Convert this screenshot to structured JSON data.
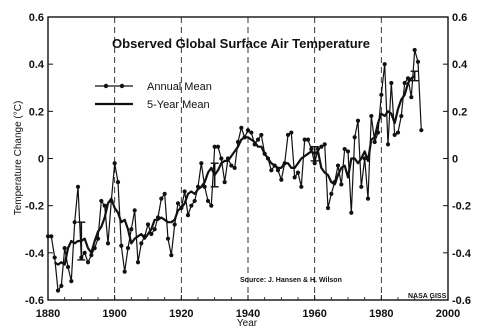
{
  "chart_data": {
    "type": "line",
    "title": "Observed Global Surface Air Temperature",
    "xlabel": "Year",
    "ylabel": "Temperature Change (°C)",
    "xlim": [
      1880,
      2000
    ],
    "ylim": [
      -0.6,
      0.6
    ],
    "x_ticks": [
      1880,
      1900,
      1920,
      1940,
      1960,
      1980,
      2000
    ],
    "y_ticks": [
      -0.6,
      -0.4,
      -0.2,
      0,
      0.2,
      0.4,
      0.6
    ],
    "x_tick_labels": [
      "1880",
      "1900",
      "1920",
      "1940",
      "1960",
      "1980",
      "2000"
    ],
    "y_tick_labels": [
      "-0.6",
      "-0.4",
      "-0.2",
      "0",
      "0.2",
      "0.4",
      "0.6"
    ],
    "grid": "vertical dashed lines at x ticks",
    "legend_position": "top-left",
    "series": [
      {
        "name": "Annual Mean",
        "marker": "dot",
        "x": [
          1880,
          1881,
          1882,
          1883,
          1884,
          1885,
          1886,
          1887,
          1888,
          1889,
          1890,
          1891,
          1892,
          1893,
          1894,
          1895,
          1896,
          1897,
          1898,
          1899,
          1900,
          1901,
          1902,
          1903,
          1904,
          1905,
          1906,
          1907,
          1908,
          1909,
          1910,
          1911,
          1912,
          1913,
          1914,
          1915,
          1916,
          1917,
          1918,
          1919,
          1920,
          1921,
          1922,
          1923,
          1924,
          1925,
          1926,
          1927,
          1928,
          1929,
          1930,
          1931,
          1932,
          1933,
          1934,
          1935,
          1936,
          1937,
          1938,
          1939,
          1940,
          1941,
          1942,
          1943,
          1944,
          1945,
          1946,
          1947,
          1948,
          1949,
          1950,
          1951,
          1952,
          1953,
          1954,
          1955,
          1956,
          1957,
          1958,
          1959,
          1960,
          1961,
          1962,
          1963,
          1964,
          1965,
          1966,
          1967,
          1968,
          1969,
          1970,
          1971,
          1972,
          1973,
          1974,
          1975,
          1976,
          1977,
          1978,
          1979,
          1980,
          1981,
          1982,
          1983,
          1984,
          1985,
          1986,
          1987,
          1988,
          1989,
          1990,
          1991,
          1992
        ],
        "values": [
          -0.33,
          -0.33,
          -0.42,
          -0.56,
          -0.54,
          -0.38,
          -0.46,
          -0.52,
          -0.27,
          -0.12,
          -0.42,
          -0.4,
          -0.44,
          -0.41,
          -0.38,
          -0.34,
          -0.18,
          -0.2,
          -0.36,
          -0.18,
          -0.02,
          -0.1,
          -0.37,
          -0.48,
          -0.38,
          -0.3,
          -0.22,
          -0.44,
          -0.36,
          -0.33,
          -0.28,
          -0.32,
          -0.3,
          -0.25,
          -0.17,
          -0.15,
          -0.34,
          -0.41,
          -0.28,
          -0.19,
          -0.21,
          -0.14,
          -0.24,
          -0.2,
          -0.18,
          -0.12,
          -0.02,
          -0.12,
          -0.18,
          -0.2,
          0.05,
          0.05,
          0.0,
          -0.1,
          0.0,
          -0.03,
          -0.04,
          0.07,
          0.13,
          0.09,
          0.12,
          0.11,
          0.06,
          0.08,
          0.1,
          0.02,
          0.0,
          -0.05,
          -0.03,
          -0.05,
          -0.09,
          -0.02,
          0.1,
          0.11,
          -0.08,
          -0.06,
          -0.12,
          0.08,
          0.08,
          0.04,
          -0.02,
          0.04,
          0.05,
          0.06,
          -0.21,
          -0.15,
          -0.1,
          -0.03,
          -0.11,
          0.04,
          0.03,
          -0.23,
          0.09,
          0.16,
          -0.12,
          0.0,
          -0.17,
          0.18,
          0.07,
          0.11,
          0.27,
          0.4,
          0.06,
          0.32,
          0.1,
          0.11,
          0.18,
          0.32,
          0.34,
          0.26,
          0.46,
          0.41,
          0.12
        ]
      },
      {
        "name": "5-Year Mean",
        "marker": "none",
        "x": [
          1882,
          1883,
          1884,
          1885,
          1886,
          1887,
          1888,
          1889,
          1890,
          1891,
          1892,
          1893,
          1894,
          1895,
          1896,
          1897,
          1898,
          1899,
          1900,
          1901,
          1902,
          1903,
          1904,
          1905,
          1906,
          1907,
          1908,
          1909,
          1910,
          1911,
          1912,
          1913,
          1914,
          1915,
          1916,
          1917,
          1918,
          1919,
          1920,
          1921,
          1922,
          1923,
          1924,
          1925,
          1926,
          1927,
          1928,
          1929,
          1930,
          1931,
          1932,
          1933,
          1934,
          1935,
          1936,
          1937,
          1938,
          1939,
          1940,
          1941,
          1942,
          1943,
          1944,
          1945,
          1946,
          1947,
          1948,
          1949,
          1950,
          1951,
          1952,
          1953,
          1954,
          1955,
          1956,
          1957,
          1958,
          1959,
          1960,
          1961,
          1962,
          1963,
          1964,
          1965,
          1966,
          1967,
          1968,
          1969,
          1970,
          1971,
          1972,
          1973,
          1974,
          1975,
          1976,
          1977,
          1978,
          1979,
          1980,
          1981,
          1982,
          1983,
          1984,
          1985,
          1986,
          1987,
          1988,
          1989,
          1990
        ],
        "values": [
          -0.44,
          -0.45,
          -0.44,
          -0.45,
          -0.38,
          -0.35,
          -0.36,
          -0.35,
          -0.35,
          -0.34,
          -0.38,
          -0.4,
          -0.35,
          -0.31,
          -0.29,
          -0.25,
          -0.19,
          -0.17,
          -0.21,
          -0.23,
          -0.27,
          -0.26,
          -0.3,
          -0.36,
          -0.34,
          -0.33,
          -0.32,
          -0.34,
          -0.32,
          -0.3,
          -0.26,
          -0.26,
          -0.25,
          -0.26,
          -0.27,
          -0.27,
          -0.26,
          -0.22,
          -0.21,
          -0.19,
          -0.15,
          -0.14,
          -0.15,
          -0.13,
          -0.12,
          -0.1,
          -0.06,
          -0.04,
          -0.07,
          -0.05,
          -0.02,
          -0.01,
          -0.01,
          0.01,
          0.03,
          0.05,
          0.08,
          0.09,
          0.09,
          0.08,
          0.07,
          0.05,
          0.05,
          0.02,
          0.0,
          -0.02,
          -0.03,
          -0.04,
          -0.04,
          -0.02,
          -0.02,
          -0.04,
          -0.04,
          -0.02,
          0.0,
          0.01,
          0.02,
          0.03,
          0.02,
          0.03,
          -0.04,
          -0.06,
          -0.07,
          -0.1,
          -0.11,
          -0.07,
          -0.04,
          -0.03,
          -0.08,
          0.0,
          0.0,
          -0.02,
          0.0,
          0.03,
          -0.01,
          0.08,
          0.09,
          0.15,
          0.19,
          0.18,
          0.2,
          0.19,
          0.15,
          0.21,
          0.25,
          0.27,
          0.32,
          0.34,
          0.35
        ]
      }
    ],
    "error_bar_years": [
      1890,
      1930,
      1960,
      1990
    ],
    "error_bar_half_widths": [
      0.08,
      0.05,
      0.03,
      0.02
    ],
    "annotations": [
      "Source: J. Hansen & H. Wilson",
      "NASA GISS"
    ]
  }
}
